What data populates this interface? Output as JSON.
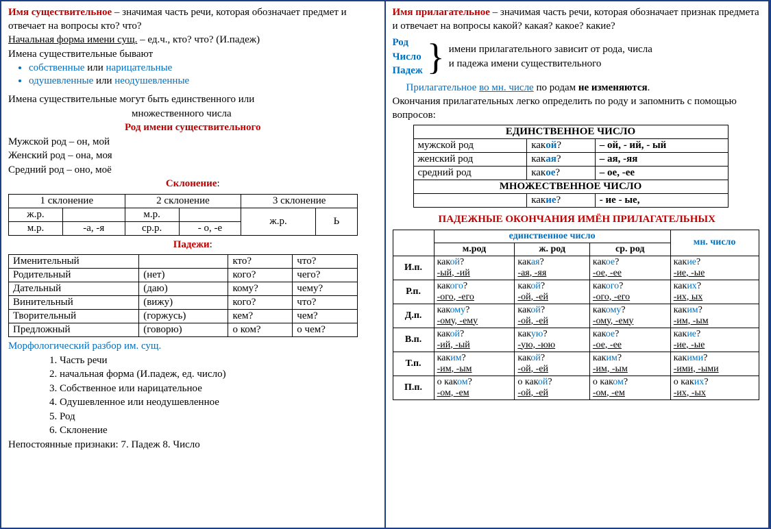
{
  "left": {
    "title": "Имя существительное",
    "def": " – значимая часть речи, которая обозначает предмет и отвечает на вопросы кто? что?",
    "nachform": "Начальная форма имени сущ.",
    "nachform2": " – ед.ч., кто? что? (И.падеж)",
    "byvayut": "Имена существительные  бывают",
    "bullet1a": "собственные",
    "bullet1b": " или ",
    "bullet1c": "нарицательные",
    "bullet2a": "одушевленные",
    "bullet2b": " или ",
    "bullet2c": "неодушевленные",
    "chislo1": "Имена существительные  могут быть единственного  или",
    "chislo2": "множественного  числа",
    "rod_hdr_pre": "Род",
    "rod_hdr_post": " имени существительного",
    "rod1": "Мужской род – он, мой",
    "rod2": "Женский род – она, моя",
    "rod3": "Средний род – оно, моё",
    "skl_hdr": "Склонение",
    "skl": {
      "h1": "1 склонение",
      "h2": "2 склонение",
      "h3": "3 склонение",
      "r1c1": "ж.р.",
      "r1c2": "",
      "r1c3": "м.р.",
      "r1c4": "",
      "r1c5": "",
      "r1c6": "",
      "r2c1": "м.р.",
      "r2c2": "-а, -я",
      "r2c3": "ср.р.",
      "r2c4": "- о, -е",
      "r2c5": "ж.р.",
      "r2c6": "Ь"
    },
    "padez_hdr": "Падежи",
    "padez": [
      [
        "Именительный",
        "",
        "кто?",
        "что?"
      ],
      [
        "Родительный",
        "(нет)",
        "кого?",
        "чего?"
      ],
      [
        "Дательный",
        "(даю)",
        "кому?",
        "чему?"
      ],
      [
        "Винительный",
        "(вижу)",
        "кого?",
        "что?"
      ],
      [
        "Творительный",
        "(горжусь)",
        "кем?",
        "чем?"
      ],
      [
        "Предложный",
        "(говорю)",
        "о ком?",
        "о чем?"
      ]
    ],
    "morf_hdr": "Морфологический разбор им. сущ.",
    "morf": [
      "1. Часть речи",
      "2. начальная форма (И.падеж, ед. число)",
      "3. Собственное или нарицательное",
      "4. Одушевленное или неодушевленное",
      "5. Род",
      "6. Склонение"
    ],
    "nepost": "Непостоянные признаки:   7. Падеж      8. Число"
  },
  "right": {
    "title": "Имя прилагательное",
    "def": " – значимая часть речи, которая обозначает признак предмета и отвечает на вопросы какой? какая? какое? какие?",
    "rod_lbl1": "Род",
    "rod_lbl2": "Число",
    "rod_lbl3": "Падеж",
    "rod_txt1": "имени прилагательного зависит от рода, числа",
    "rod_txt2": "и падежа имени существительного",
    "pril_note_a": "Прилагательное ",
    "pril_note_b": "во мн. числе",
    "pril_note_c": " по родам ",
    "pril_note_d": "не изменяются",
    "okonch": "Окончания прилагательных легко определить по роду и запомнить с помощью вопросов:",
    "ed": {
      "hdr1": "ЕДИНСТВЕННОЕ ЧИСЛО",
      "r1": [
        "мужской род",
        "какой?",
        "– ой,  - ий,  - ый"
      ],
      "r2": [
        "женский род",
        "какая?",
        "– ая,  -яя"
      ],
      "r3": [
        "средний род",
        "какое?",
        "– ое, -ее"
      ],
      "hdr2": "МНОЖЕСТВЕННОЕ ЧИСЛО",
      "r4": [
        "",
        "какие?",
        "- ие - ые,"
      ]
    },
    "big_hdr": "ПАДЕЖНЫЕ ОКОНЧАНИЯ ИМЁН ПРИЛАГАТЕЛЬНЫХ",
    "big": {
      "ed_hdr": "единственное  число",
      "mn_hdr": "мн. число",
      "cols": [
        "м.род",
        "ж. род",
        "ср. род"
      ],
      "rows": [
        {
          "p": "И.п.",
          "c": [
            [
              "какой?",
              "-ый, -ий"
            ],
            [
              "какая?",
              "-ая, -яя"
            ],
            [
              "какое?",
              "-ое, -ее"
            ],
            [
              "какие?",
              "-ие, -ые"
            ]
          ],
          "hl": [
            "ой",
            "ая",
            "ое",
            "ие"
          ]
        },
        {
          "p": "Р.п.",
          "c": [
            [
              "какого?",
              "-ого, -его"
            ],
            [
              "какой?",
              "-ой, -ей"
            ],
            [
              "какого?",
              "-ого, -его"
            ],
            [
              "каких?",
              "-их, ых"
            ]
          ],
          "hl": [
            "ого",
            "ой",
            "ого",
            "их"
          ]
        },
        {
          "p": "Д.п.",
          "c": [
            [
              "какому?",
              "-ому, -ему"
            ],
            [
              "какой?",
              "-ой, -ей"
            ],
            [
              "какому?",
              "-ому, -ему"
            ],
            [
              "каким?",
              "-им, -ым"
            ]
          ],
          "hl": [
            "ому",
            "ой",
            "ому",
            "им"
          ]
        },
        {
          "p": "В.п.",
          "c": [
            [
              "какой?",
              "-ий, -ый"
            ],
            [
              "какую?",
              "-ую, -юю"
            ],
            [
              "какое?",
              "-ое, -ее"
            ],
            [
              "какие?",
              "-ие, -ые"
            ]
          ],
          "hl": [
            "ой",
            "ую",
            "ое",
            "ие"
          ]
        },
        {
          "p": "Т.п.",
          "c": [
            [
              "каким?",
              "-им, -ым"
            ],
            [
              "какой?",
              "-ой, -ей"
            ],
            [
              "каким?",
              "-им, -ым"
            ],
            [
              "какими?",
              "-ими, -ыми"
            ]
          ],
          "hl": [
            "им",
            "ой",
            "им",
            "ими"
          ]
        },
        {
          "p": "П.п.",
          "c": [
            [
              "о каком?",
              "-ом, -ем"
            ],
            [
              "о какой?",
              "-ой, -ей"
            ],
            [
              "о каком?",
              "-ом, -ем"
            ],
            [
              "о каких?",
              "-их, -ых"
            ]
          ],
          "hl": [
            "ом",
            "ой",
            "ом",
            "их"
          ]
        }
      ]
    }
  }
}
